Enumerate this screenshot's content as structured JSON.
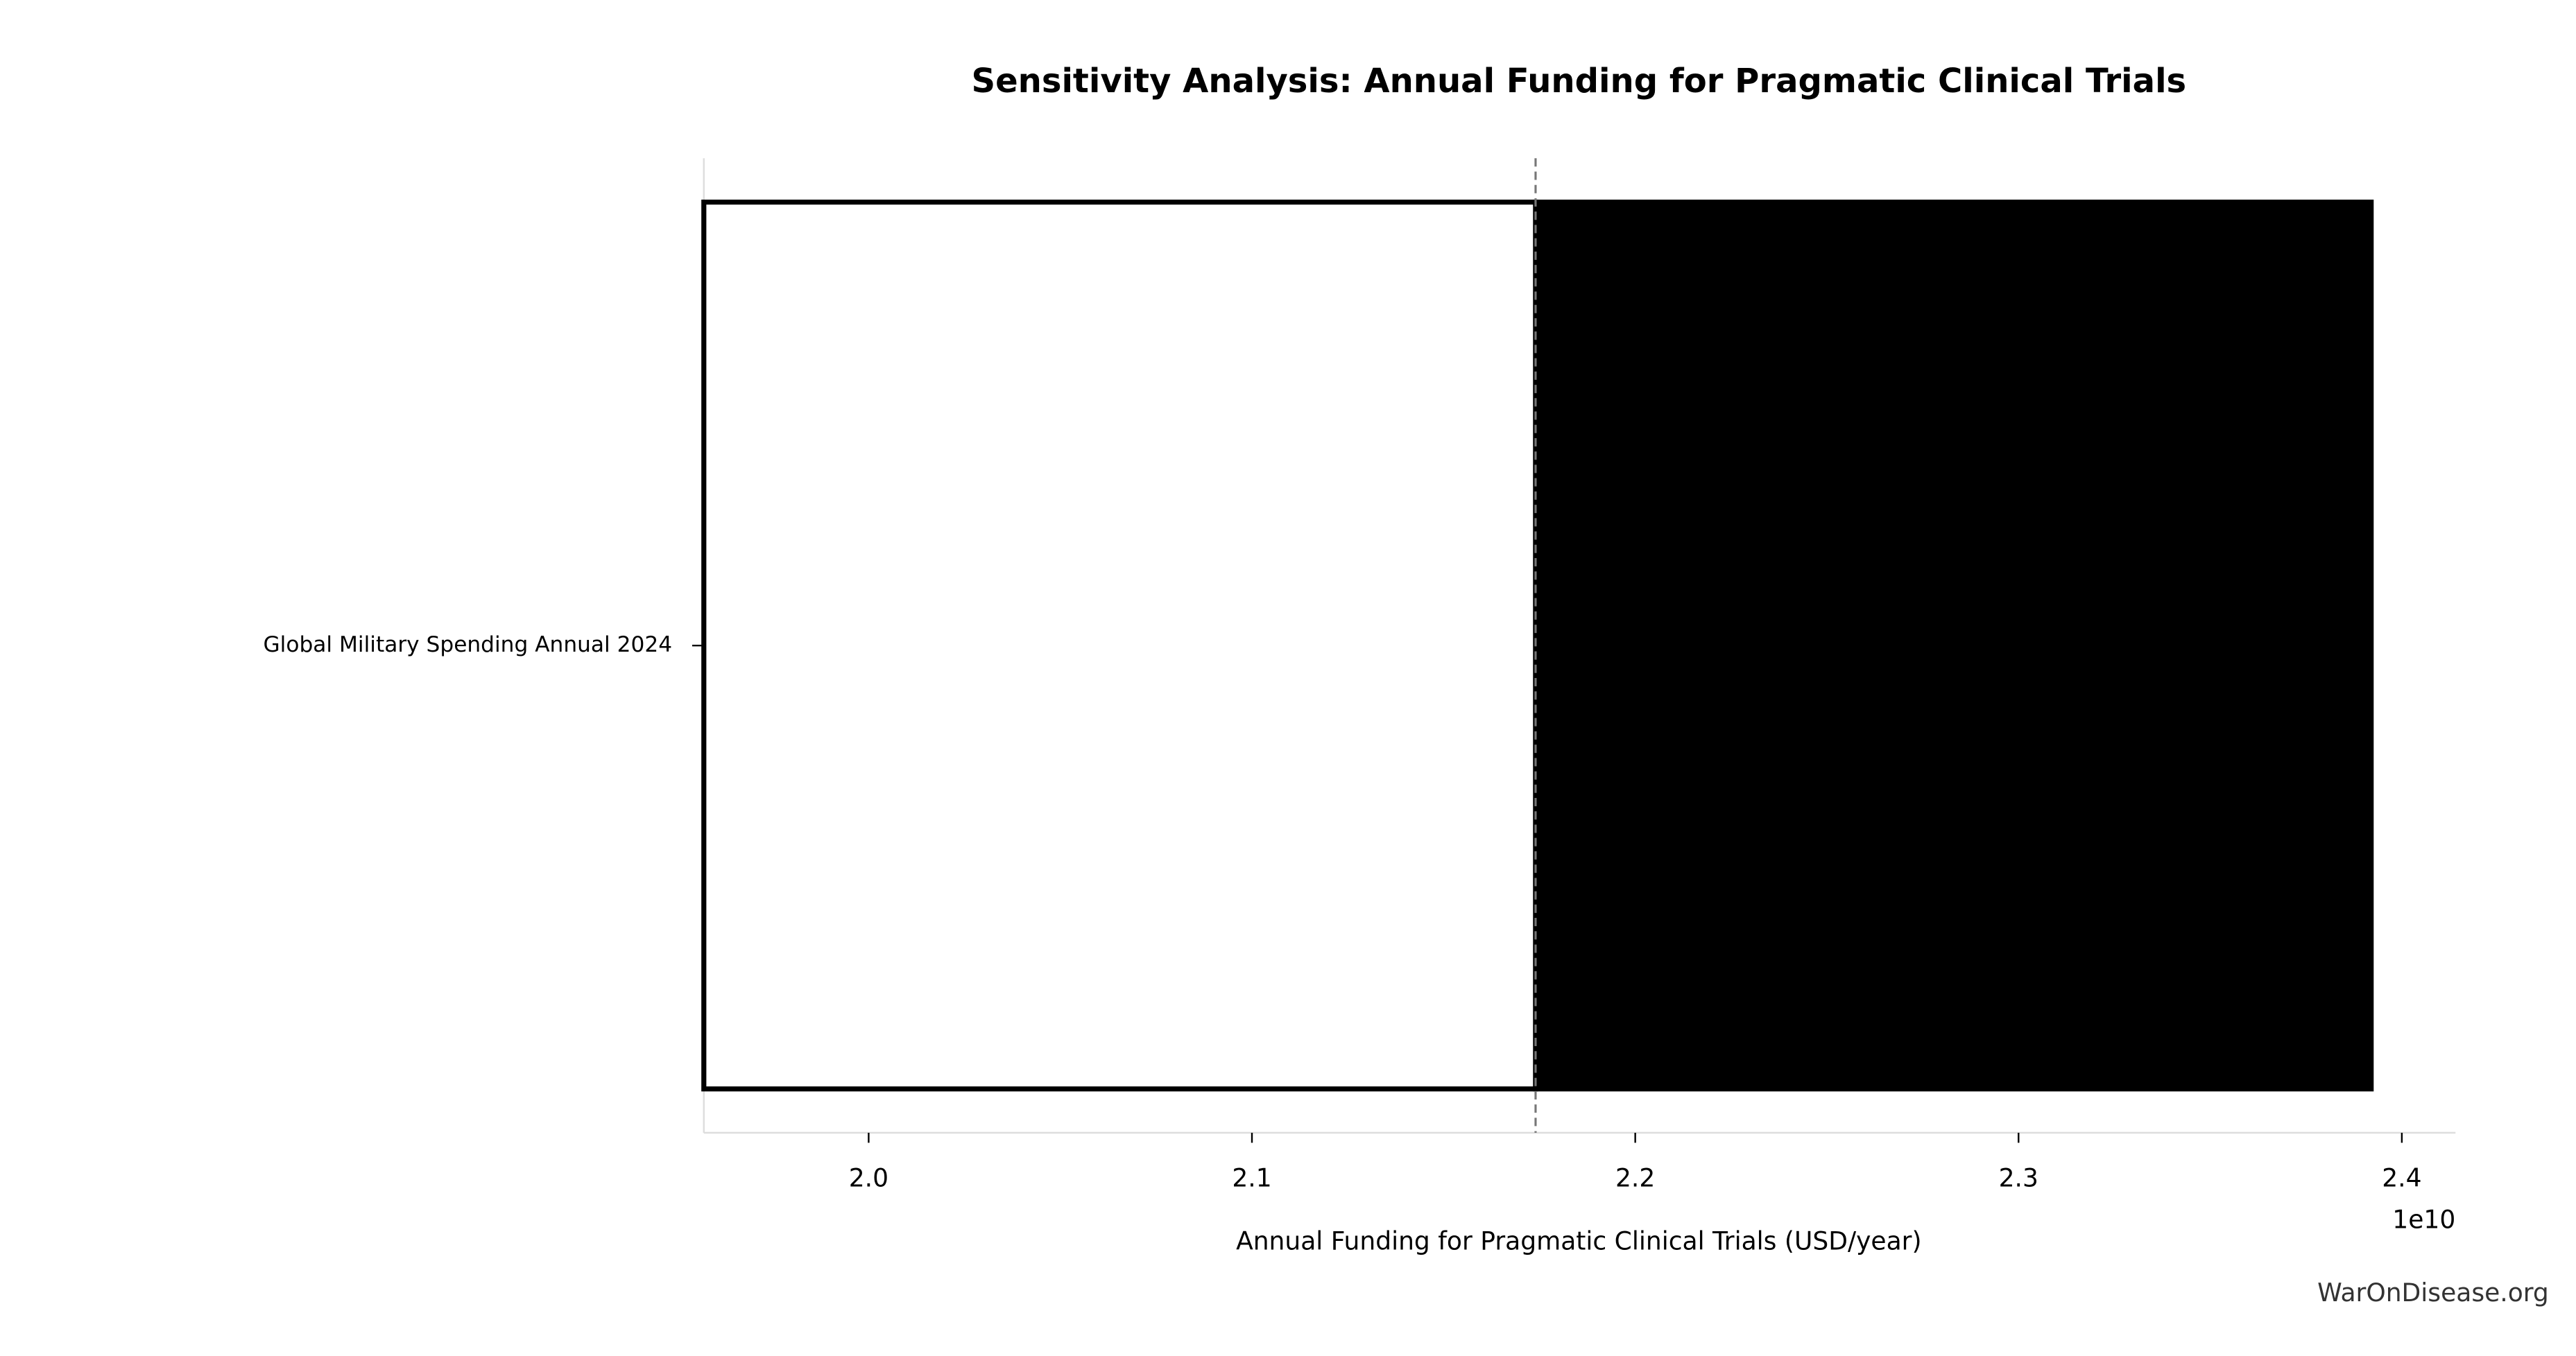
{
  "chart_data": {
    "type": "tornado",
    "title": "Sensitivity Analysis: Annual Funding for Pragmatic Clinical Trials",
    "xlabel": "Annual Funding for Pragmatic Clinical Trials (USD/year)",
    "x_offset_label": "1e10",
    "categories": [
      "Global Military Spending Annual 2024"
    ],
    "low": [
      19570000000
    ],
    "high": [
      23920000000
    ],
    "baseline": 21740000000,
    "low_color": "#ffffff",
    "high_color": "#000000",
    "xlim": [
      19570000000,
      24140000000
    ],
    "xticks": [
      {
        "value": 20000000000,
        "label": "2.0"
      },
      {
        "value": 21000000000,
        "label": "2.1"
      },
      {
        "value": 22000000000,
        "label": "2.2"
      },
      {
        "value": 23000000000,
        "label": "2.3"
      },
      {
        "value": 24000000000,
        "label": "2.4"
      }
    ],
    "watermark": "WarOnDisease.org"
  }
}
